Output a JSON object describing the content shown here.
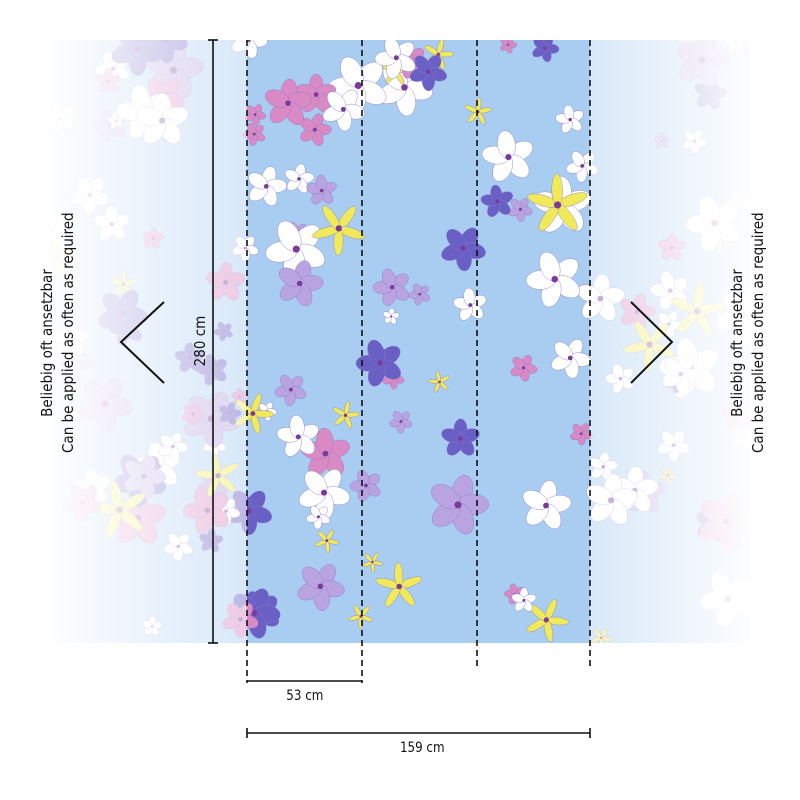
{
  "repeat_note": {
    "de": "Beliebig oft ansetzbar",
    "en": "Can be applied as often as required"
  },
  "dimensions": {
    "height": "280 cm",
    "panel_width": "53 cm",
    "total_width": "159 cm"
  },
  "panel_count": 3,
  "colors": {
    "background": "#a9cdf1",
    "purple": "#6a5fc4",
    "pink": "#d98ac4",
    "yellow": "#f0ea5a",
    "white": "#ffffff",
    "line": "#111111"
  },
  "icons": {
    "left": "chevron-left-icon",
    "right": "chevron-right-icon"
  }
}
